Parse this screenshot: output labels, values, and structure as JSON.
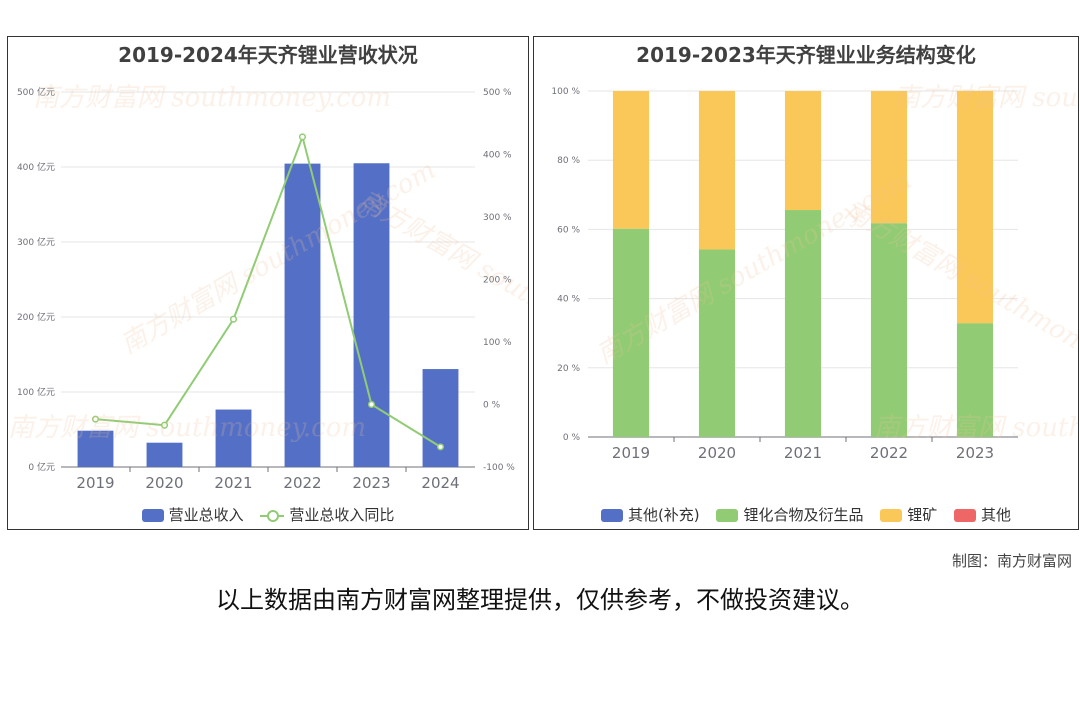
{
  "chart_data": [
    {
      "type": "bar",
      "title": "2019-2024年天齐锂业营收状况",
      "categories": [
        "2019",
        "2020",
        "2021",
        "2022",
        "2023",
        "2024"
      ],
      "series": [
        {
          "name": "营业总收入",
          "type": "bar",
          "axis": "left",
          "color": "#5470c6",
          "values": [
            48.4,
            32.4,
            76.6,
            404.5,
            405,
            130.6
          ]
        },
        {
          "name": "营业总收入同比",
          "type": "line",
          "axis": "right",
          "color": "#91cc75",
          "values": [
            -23.4,
            -33.1,
            136.5,
            428.2,
            0.1,
            -67.8
          ]
        }
      ],
      "ylim_left": [
        0,
        500
      ],
      "ylim_right": [
        -100,
        500
      ],
      "yticks_left": [
        "0 亿元",
        "100 亿元",
        "200 亿元",
        "300 亿元",
        "400 亿元",
        "500 亿元"
      ],
      "yticks_right": [
        "-100 %",
        "0 %",
        "100 %",
        "200 %",
        "300 %",
        "400 %",
        "500 %"
      ],
      "grid": true,
      "legend_position": "bottom"
    },
    {
      "type": "bar",
      "stacked": true,
      "title": "2019-2023年天齐锂业业务结构变化",
      "categories": [
        "2019",
        "2020",
        "2021",
        "2022",
        "2023"
      ],
      "series": [
        {
          "name": "其他(补充)",
          "color": "#5470c6",
          "values": [
            0,
            0,
            0,
            0,
            0
          ]
        },
        {
          "name": "锂化合物及衍生品",
          "color": "#91cc75",
          "values": [
            60.2,
            54.2,
            65.6,
            61.8,
            32.9
          ]
        },
        {
          "name": "锂矿",
          "color": "#fac858",
          "values": [
            39.8,
            45.8,
            34.4,
            38.2,
            67.1
          ]
        },
        {
          "name": "其他",
          "color": "#ee6666",
          "values": [
            0,
            0,
            0,
            0,
            0
          ]
        }
      ],
      "ylim": [
        0,
        100
      ],
      "yticks": [
        "0 %",
        "20 %",
        "40 %",
        "60 %",
        "80 %",
        "100 %"
      ],
      "grid": true,
      "legend_position": "bottom"
    }
  ],
  "watermark": {
    "brand": "南方财富网",
    "site": "southmoney.com"
  },
  "footer": {
    "credit": "制图：南方财富网",
    "disclaimer": "以上数据由南方财富网整理提供，仅供参考，不做投资建议。"
  }
}
